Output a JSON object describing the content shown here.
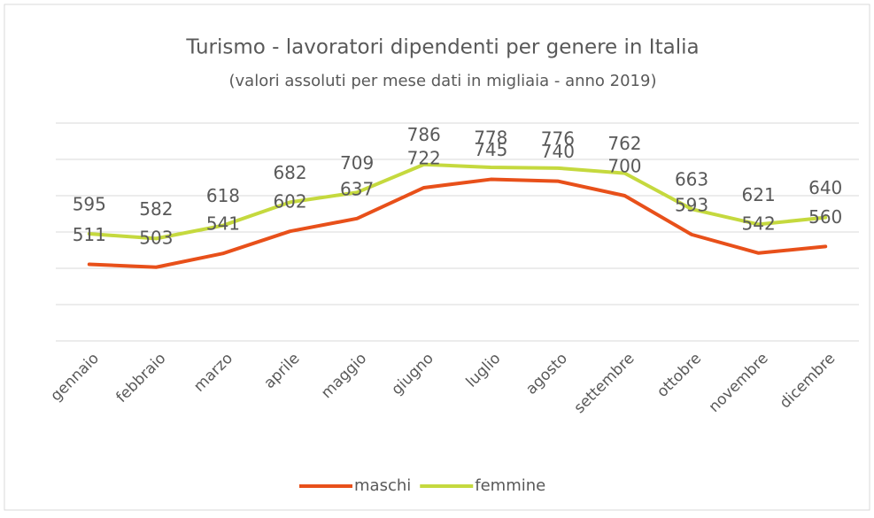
{
  "chart_data": {
    "type": "line",
    "title": "Turismo - lavoratori dipendenti per genere in Italia",
    "subtitle": "(valori assoluti per mese dati in migliaia - anno 2019)",
    "categories": [
      "gennaio",
      "febbraio",
      "marzo",
      "aprile",
      "maggio",
      "giugno",
      "luglio",
      "agosto",
      "settembre",
      "ottobre",
      "novembre",
      "dicembre"
    ],
    "series": [
      {
        "name": "maschi",
        "color": "#e8501a",
        "values": [
          511,
          503,
          541,
          602,
          637,
          722,
          745,
          740,
          700,
          593,
          542,
          560
        ]
      },
      {
        "name": "femmine",
        "color": "#c5d93e",
        "values": [
          595,
          582,
          618,
          682,
          709,
          786,
          778,
          776,
          762,
          663,
          621,
          640
        ]
      }
    ],
    "ylim": [
      300,
      900
    ],
    "yticks": [
      300,
      400,
      500,
      600,
      700,
      800,
      900
    ],
    "grid": true,
    "legend": "bottom"
  }
}
